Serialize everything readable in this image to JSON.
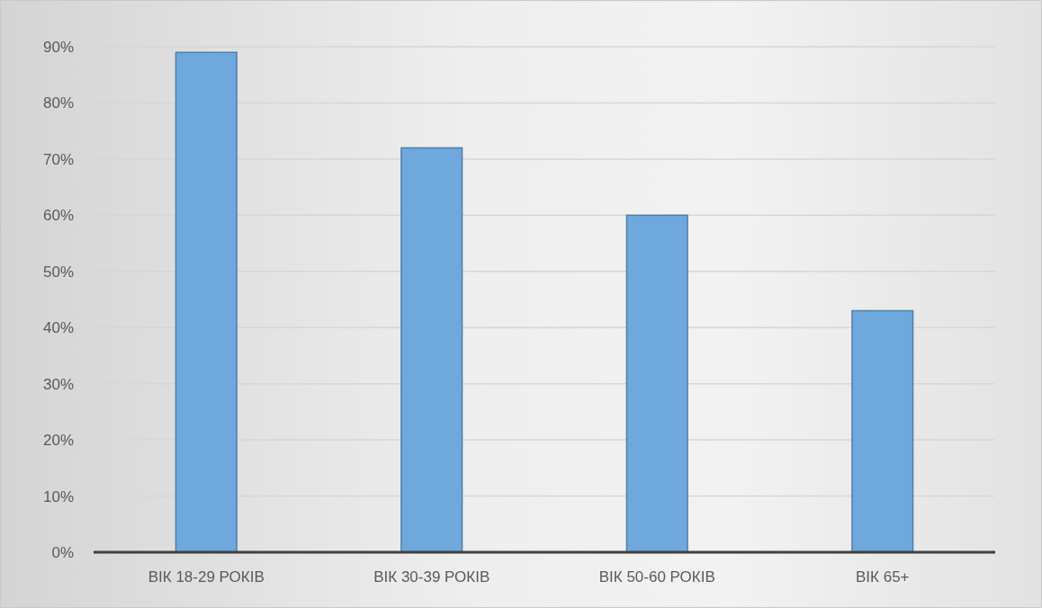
{
  "chart_data": {
    "type": "bar",
    "categories": [
      "ВІК 18-29 РОКІВ",
      "ВІК 30-39 РОКІВ",
      "ВІК 50-60 РОКІВ",
      "ВІК 65+"
    ],
    "values": [
      89,
      72,
      60,
      43
    ],
    "color": "#6fa8dc",
    "ylim": [
      0,
      90
    ],
    "yticks": [
      {
        "value": 0,
        "label": "0%"
      },
      {
        "value": 10,
        "label": "10%"
      },
      {
        "value": 20,
        "label": "20%"
      },
      {
        "value": 30,
        "label": "30%"
      },
      {
        "value": 40,
        "label": "40%"
      },
      {
        "value": 50,
        "label": "50%"
      },
      {
        "value": 60,
        "label": "60%"
      },
      {
        "value": 70,
        "label": "70%"
      },
      {
        "value": 80,
        "label": "80%"
      },
      {
        "value": 90,
        "label": "90%"
      }
    ],
    "grid": "y"
  }
}
